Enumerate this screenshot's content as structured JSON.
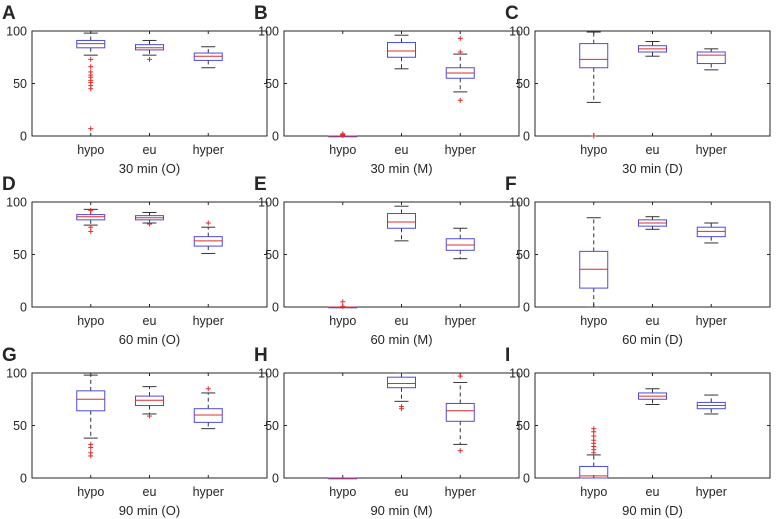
{
  "chart_data": [
    {
      "panel": "A",
      "type": "box",
      "xlabel": "30 min (O)",
      "categories": [
        "hypo",
        "eu",
        "hyper"
      ],
      "ylim": [
        0,
        100
      ],
      "yticks": [
        0,
        50,
        100
      ],
      "boxes": [
        {
          "q1": 84,
          "median": 88,
          "q3": 91,
          "whisker_low": 77,
          "whisker_high": 98,
          "outliers": [
            7,
            45,
            48,
            51,
            53,
            56,
            58,
            61,
            66,
            73
          ]
        },
        {
          "q1": 82,
          "median": 84,
          "q3": 87,
          "whisker_low": 77,
          "whisker_high": 91,
          "outliers": [
            73
          ]
        },
        {
          "q1": 72,
          "median": 76,
          "q3": 79,
          "whisker_low": 65,
          "whisker_high": 85,
          "outliers": []
        }
      ]
    },
    {
      "panel": "B",
      "type": "box",
      "xlabel": "30 min (M)",
      "categories": [
        "hypo",
        "eu",
        "hyper"
      ],
      "ylim": [
        0,
        100
      ],
      "yticks": [
        0,
        50,
        100
      ],
      "boxes": [
        {
          "q1": 0,
          "median": 0,
          "q3": 0,
          "whisker_low": 0,
          "whisker_high": 0,
          "outliers": [
            0.5,
            1,
            1.5,
            2
          ]
        },
        {
          "q1": 75,
          "median": 81,
          "q3": 89,
          "whisker_low": 64,
          "whisker_high": 96,
          "outliers": []
        },
        {
          "q1": 55,
          "median": 60,
          "q3": 65,
          "whisker_low": 42,
          "whisker_high": 78,
          "outliers": [
            34,
            80,
            93
          ]
        }
      ]
    },
    {
      "panel": "C",
      "type": "box",
      "xlabel": "30 min (D)",
      "categories": [
        "hypo",
        "eu",
        "hyper"
      ],
      "ylim": [
        0,
        100
      ],
      "yticks": [
        0,
        50,
        100
      ],
      "boxes": [
        {
          "q1": 65,
          "median": 73,
          "q3": 88,
          "whisker_low": 32,
          "whisker_high": 99,
          "outliers": [
            0
          ]
        },
        {
          "q1": 80,
          "median": 83,
          "q3": 86,
          "whisker_low": 76,
          "whisker_high": 90,
          "outliers": []
        },
        {
          "q1": 69,
          "median": 77,
          "q3": 80,
          "whisker_low": 63,
          "whisker_high": 83,
          "outliers": []
        }
      ]
    },
    {
      "panel": "D",
      "type": "box",
      "xlabel": "60 min (O)",
      "categories": [
        "hypo",
        "eu",
        "hyper"
      ],
      "ylim": [
        0,
        100
      ],
      "yticks": [
        0,
        50,
        100
      ],
      "boxes": [
        {
          "q1": 83,
          "median": 86,
          "q3": 88,
          "whisker_low": 78,
          "whisker_high": 93,
          "outliers": [
            72,
            76,
            92
          ]
        },
        {
          "q1": 83,
          "median": 85,
          "q3": 87,
          "whisker_low": 80,
          "whisker_high": 90,
          "outliers": [
            79
          ]
        },
        {
          "q1": 58,
          "median": 63,
          "q3": 67,
          "whisker_low": 51,
          "whisker_high": 76,
          "outliers": [
            80
          ]
        }
      ]
    },
    {
      "panel": "E",
      "type": "box",
      "xlabel": "60 min (M)",
      "categories": [
        "hypo",
        "eu",
        "hyper"
      ],
      "ylim": [
        0,
        100
      ],
      "yticks": [
        0,
        50,
        100
      ],
      "boxes": [
        {
          "q1": 0,
          "median": 0,
          "q3": 0,
          "whisker_low": 0,
          "whisker_high": 0,
          "outliers": [
            0.5,
            5
          ]
        },
        {
          "q1": 75,
          "median": 81,
          "q3": 89,
          "whisker_low": 63,
          "whisker_high": 96,
          "outliers": []
        },
        {
          "q1": 54,
          "median": 59,
          "q3": 65,
          "whisker_low": 46,
          "whisker_high": 75,
          "outliers": []
        }
      ]
    },
    {
      "panel": "F",
      "type": "box",
      "xlabel": "60 min (D)",
      "categories": [
        "hypo",
        "eu",
        "hyper"
      ],
      "ylim": [
        0,
        100
      ],
      "yticks": [
        0,
        50,
        100
      ],
      "boxes": [
        {
          "q1": 18,
          "median": 36,
          "q3": 53,
          "whisker_low": 0,
          "whisker_high": 85,
          "outliers": []
        },
        {
          "q1": 77,
          "median": 80,
          "q3": 83,
          "whisker_low": 74,
          "whisker_high": 86,
          "outliers": []
        },
        {
          "q1": 67,
          "median": 72,
          "q3": 76,
          "whisker_low": 61,
          "whisker_high": 80,
          "outliers": []
        }
      ]
    },
    {
      "panel": "G",
      "type": "box",
      "xlabel": "90 min (O)",
      "categories": [
        "hypo",
        "eu",
        "hyper"
      ],
      "ylim": [
        0,
        100
      ],
      "yticks": [
        0,
        50,
        100
      ],
      "boxes": [
        {
          "q1": 64,
          "median": 75,
          "q3": 83,
          "whisker_low": 38,
          "whisker_high": 98,
          "outliers": [
            21,
            24,
            29,
            32
          ]
        },
        {
          "q1": 69,
          "median": 74,
          "q3": 78,
          "whisker_low": 61,
          "whisker_high": 87,
          "outliers": [
            59
          ]
        },
        {
          "q1": 53,
          "median": 60,
          "q3": 66,
          "whisker_low": 47,
          "whisker_high": 81,
          "outliers": [
            85
          ]
        }
      ]
    },
    {
      "panel": "H",
      "type": "box",
      "xlabel": "90 min (M)",
      "categories": [
        "hypo",
        "eu",
        "hyper"
      ],
      "ylim": [
        0,
        100
      ],
      "yticks": [
        0,
        50,
        100
      ],
      "boxes": [
        {
          "q1": 0,
          "median": 0,
          "q3": 0,
          "whisker_low": 0,
          "whisker_high": 0,
          "outliers": []
        },
        {
          "q1": 86,
          "median": 90,
          "q3": 96,
          "whisker_low": 73,
          "whisker_high": 100,
          "outliers": [
            66,
            68
          ]
        },
        {
          "q1": 54,
          "median": 64,
          "q3": 71,
          "whisker_low": 32,
          "whisker_high": 91,
          "outliers": [
            26,
            97
          ]
        }
      ]
    },
    {
      "panel": "I",
      "type": "box",
      "xlabel": "90 min (D)",
      "categories": [
        "hypo",
        "eu",
        "hyper"
      ],
      "ylim": [
        0,
        100
      ],
      "yticks": [
        0,
        50,
        100
      ],
      "boxes": [
        {
          "q1": 0,
          "median": 2,
          "q3": 11,
          "whisker_low": 0,
          "whisker_high": 22,
          "outliers": [
            24,
            27,
            30,
            33,
            36,
            40,
            44,
            47
          ]
        },
        {
          "q1": 75,
          "median": 78,
          "q3": 81,
          "whisker_low": 70,
          "whisker_high": 85,
          "outliers": []
        },
        {
          "q1": 66,
          "median": 69,
          "q3": 72,
          "whisker_low": 61,
          "whisker_high": 79,
          "outliers": []
        }
      ]
    }
  ],
  "style": {
    "box_color": "#4a4ae0",
    "median_color": "#e02c2c",
    "outlier_color": "#e02c2c",
    "whisker_color": "#333333",
    "axis_color": "#262626"
  }
}
